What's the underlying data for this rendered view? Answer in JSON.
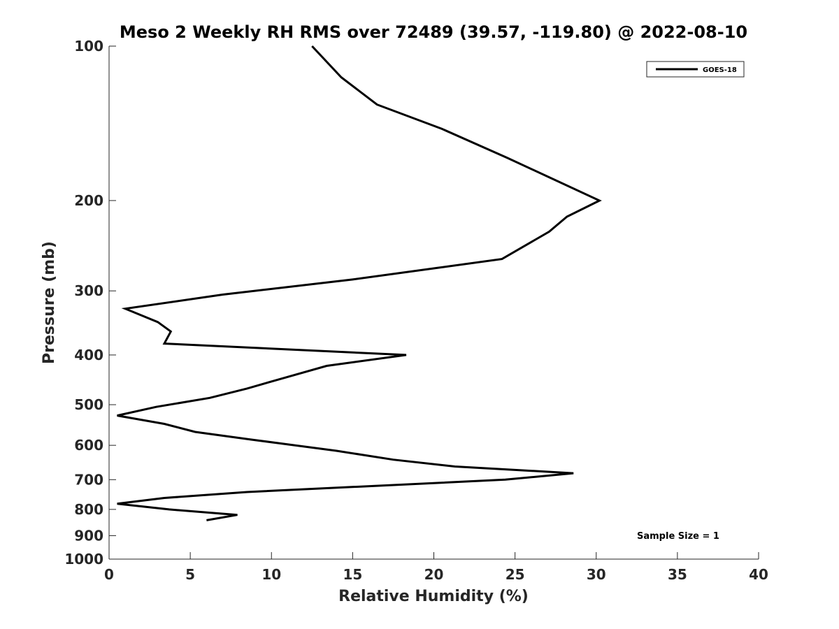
{
  "chart_data": {
    "type": "line",
    "title": "Meso 2 Weekly RH RMS over 72489 (39.57, -119.80) @ 2022-08-10",
    "xlabel": "Relative Humidity (%)",
    "ylabel": "Pressure (mb)",
    "xlim": [
      0,
      40
    ],
    "ylim": [
      1000,
      100
    ],
    "yscale": "log",
    "xticks": [
      0,
      5,
      10,
      15,
      20,
      25,
      30,
      35,
      40
    ],
    "xtick_labels": [
      "0",
      "5",
      "10",
      "15",
      "20",
      "25",
      "30",
      "35",
      "40"
    ],
    "yticks": [
      100,
      200,
      300,
      400,
      500,
      600,
      700,
      800,
      900,
      1000
    ],
    "ytick_labels": [
      "100",
      "200",
      "300",
      "400",
      "500",
      "600",
      "700",
      "800",
      "900",
      "1000"
    ],
    "grid": false,
    "legend_position": "top-right",
    "series": [
      {
        "name": "GOES-18",
        "color": "#000000",
        "x": [
          12.5,
          14.3,
          16.5,
          20.5,
          24.5,
          30.2,
          28.2,
          27.1,
          24.2,
          15.0,
          7.0,
          1.0,
          3.0,
          3.8,
          3.4,
          18.3,
          13.4,
          10.6,
          8.5,
          6.2,
          2.9,
          0.5,
          3.4,
          5.3,
          8.8,
          14.0,
          17.5,
          21.3,
          28.6,
          24.4,
          8.5,
          3.4,
          0.5,
          3.7,
          7.9,
          6.0
        ],
        "y": [
          100,
          115,
          130,
          145,
          165,
          200,
          215,
          230,
          260,
          285,
          305,
          325,
          345,
          360,
          380,
          400,
          420,
          445,
          465,
          485,
          505,
          525,
          545,
          565,
          585,
          615,
          640,
          660,
          680,
          700,
          740,
          760,
          780,
          800,
          820,
          840
        ]
      }
    ],
    "annotations": [
      "Sample Size = 1"
    ]
  }
}
